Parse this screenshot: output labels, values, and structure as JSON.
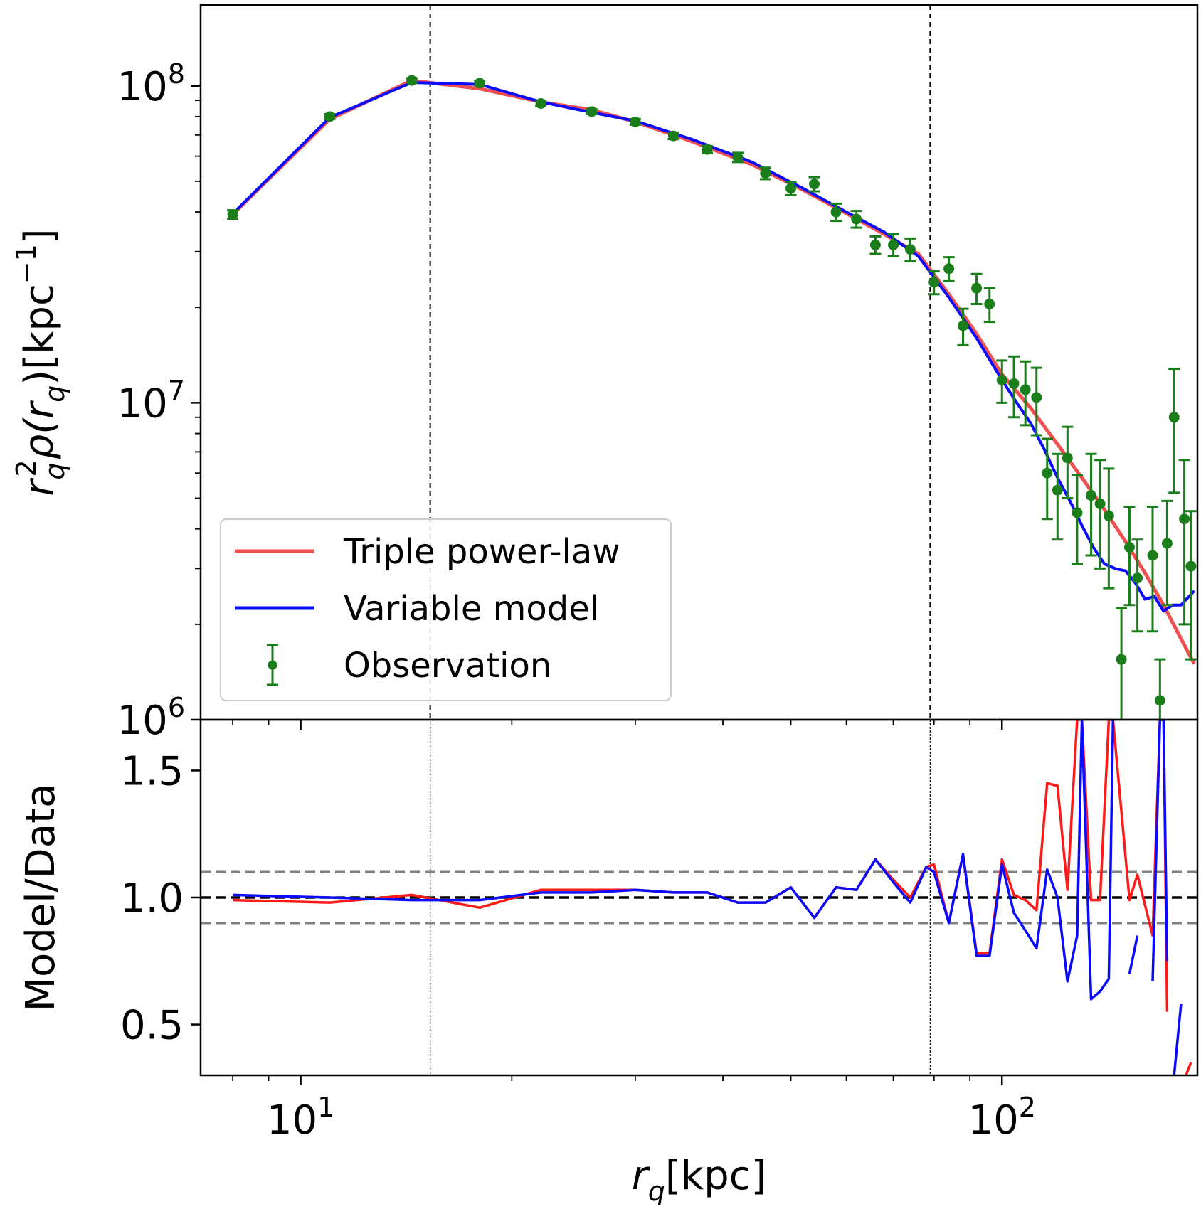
{
  "chart_data": [
    {
      "panel": "upper",
      "type": "line",
      "xscale": "log",
      "yscale": "log",
      "xlim": [
        7.2,
        190
      ],
      "ylim": [
        1000000,
        180000000
      ],
      "ylabel": "r_q^2 ρ(r_q)[kpc^-1]",
      "ytick_labels": [
        {
          "value": 100000000,
          "base": "10",
          "exp": "8"
        },
        {
          "value": 10000000,
          "base": "10",
          "exp": "7"
        },
        {
          "value": 1000000,
          "base": "10",
          "exp": "6"
        }
      ],
      "vlines": [
        15.3,
        79
      ],
      "legend": {
        "position": "lower-left",
        "entries": [
          {
            "label": "Triple power-law",
            "color": "#f05050",
            "kind": "line"
          },
          {
            "label": "Variable model",
            "color": "#0a0aff",
            "kind": "line"
          },
          {
            "label": "Observation",
            "color": "#1a7f1a",
            "kind": "errorbar"
          }
        ]
      },
      "series": [
        {
          "name": "Triple power-law",
          "color": "#f05050",
          "x": [
            8,
            11,
            14.4,
            18,
            22,
            26,
            30,
            36,
            44,
            52,
            60,
            68,
            76,
            84,
            92,
            100,
            110,
            120,
            130,
            140,
            150,
            160,
            170,
            180,
            188
          ],
          "y": [
            39300000,
            78500000,
            104000000,
            98000000,
            89000000,
            84000000,
            77000000,
            67000000,
            56500000,
            47000000,
            39600000,
            34000000,
            29500000,
            22000000,
            16500000,
            12300000,
            9600000,
            7400000,
            5800000,
            4600000,
            3650000,
            2900000,
            2300000,
            1800000,
            1500000
          ]
        },
        {
          "name": "Variable model",
          "color": "#0a0aff",
          "x": [
            8,
            11,
            14.4,
            18,
            22,
            26,
            30,
            36,
            44,
            52,
            60,
            68,
            76,
            84,
            92,
            100,
            105,
            110,
            115,
            120,
            125,
            130,
            135,
            140,
            145,
            150,
            155,
            160,
            165,
            170,
            175,
            180,
            188
          ],
          "y": [
            39500000,
            79500000,
            102500000,
            101000000,
            89000000,
            82500000,
            77500000,
            68000000,
            57500000,
            47500000,
            40000000,
            34500000,
            29000000,
            21500000,
            16000000,
            11800000,
            10000000,
            8600000,
            7100000,
            5800000,
            4900000,
            4100000,
            3500000,
            3100000,
            3000000,
            2950000,
            2700000,
            2400000,
            2450000,
            2200000,
            2300000,
            2300000,
            2550000
          ]
        }
      ],
      "observations": {
        "name": "Observation",
        "color": "#1a7f1a",
        "points": [
          [
            8,
            39300000,
            1200000
          ],
          [
            11,
            80000000,
            1500000
          ],
          [
            14.4,
            104000000,
            1800000
          ],
          [
            18,
            102000000,
            1800000
          ],
          [
            22,
            88000000,
            1600000
          ],
          [
            26,
            83000000,
            1500000
          ],
          [
            30,
            77000000,
            1600000
          ],
          [
            34,
            69500000,
            1600000
          ],
          [
            38,
            63000000,
            1600000
          ],
          [
            42,
            59500000,
            2000000
          ],
          [
            46,
            53000000,
            2200000
          ],
          [
            50,
            47500000,
            2300000
          ],
          [
            54,
            49000000,
            2500000
          ],
          [
            58,
            40000000,
            2500000
          ],
          [
            62,
            38000000,
            2300000
          ],
          [
            66,
            31500000,
            2000000
          ],
          [
            70,
            31500000,
            2500000
          ],
          [
            74,
            30500000,
            2500000
          ],
          [
            80,
            24000000,
            2000000
          ],
          [
            84,
            26500000,
            2300000
          ],
          [
            88,
            17500000,
            2300000
          ],
          [
            92,
            23000000,
            2500000
          ],
          [
            96,
            20500000,
            2500000
          ],
          [
            100,
            11800000,
            1800000
          ],
          [
            104,
            11500000,
            2500000
          ],
          [
            108,
            11000000,
            2500000
          ],
          [
            112,
            10400000,
            2500000
          ],
          [
            116,
            6000000,
            1700000
          ],
          [
            120,
            5300000,
            1600000
          ],
          [
            124,
            6700000,
            1700000
          ],
          [
            128,
            4500000,
            1400000
          ],
          [
            134,
            5100000,
            1800000
          ],
          [
            138,
            4800000,
            1800000
          ],
          [
            142,
            4400000,
            1800000
          ],
          [
            148,
            1550000,
            700000
          ],
          [
            152,
            3500000,
            1200000
          ],
          [
            156,
            2800000,
            900000
          ],
          [
            164,
            3300000,
            1400000
          ],
          [
            168,
            1150000,
            400000
          ],
          [
            172,
            3600000,
            1300000
          ],
          [
            176,
            9000000,
            3800000
          ],
          [
            182,
            4300000,
            2300000
          ],
          [
            186,
            3050000,
            1500000
          ]
        ]
      }
    },
    {
      "panel": "lower",
      "type": "line",
      "xscale": "log",
      "yscale": "linear",
      "xlim": [
        7.2,
        190
      ],
      "ylim": [
        0.3,
        1.7
      ],
      "xlabel": "r_q[kpc]",
      "ylabel": "Model/Data",
      "ytick_labels": [
        {
          "value": 1.5,
          "label": "1.5"
        },
        {
          "value": 1.0,
          "label": "1.0"
        },
        {
          "value": 0.5,
          "label": "0.5"
        }
      ],
      "xtick_labels": [
        {
          "value": 10,
          "base": "10",
          "exp": "1"
        },
        {
          "value": 100,
          "base": "10",
          "exp": "2"
        }
      ],
      "hlines": [
        {
          "value": 1.0,
          "color": "#000000",
          "style": "dashed"
        },
        {
          "value": 1.1,
          "color": "#808080",
          "style": "dashed"
        },
        {
          "value": 0.9,
          "color": "#808080",
          "style": "dashed"
        }
      ],
      "vlines": [
        15.3,
        79
      ],
      "series": [
        {
          "name": "Triple power-law",
          "color": "#ff1a1a",
          "x": [
            8,
            11,
            14.4,
            18,
            22,
            26,
            30,
            34,
            38,
            42,
            46,
            50,
            54,
            58,
            62,
            66,
            70,
            74,
            78,
            80,
            84,
            88,
            92,
            96,
            100,
            104,
            108,
            112,
            116,
            120,
            124,
            128,
            130,
            134,
            138,
            142,
            144,
            152,
            156,
            164,
            168,
            170,
            172,
            176,
            180,
            186
          ],
          "y": [
            0.99,
            0.98,
            1.01,
            0.96,
            1.03,
            1.03,
            1.03,
            1.02,
            1.02,
            0.98,
            0.98,
            1.04,
            0.92,
            1.04,
            1.03,
            1.15,
            1.07,
            1.0,
            1.12,
            1.13,
            0.9,
            1.17,
            0.78,
            0.78,
            1.15,
            1.01,
            0.99,
            0.95,
            1.45,
            1.44,
            1.03,
            1.7,
            1.7,
            0.99,
            0.99,
            1.7,
            1.7,
            0.99,
            1.09,
            0.85,
            1.7,
            1.7,
            0.55,
            0.3,
            0.25,
            0.35
          ],
          "gaps_after": [
            42
          ]
        },
        {
          "name": "Variable model",
          "color": "#0a0aff",
          "x": [
            8,
            11,
            14.4,
            18,
            22,
            26,
            30,
            34,
            38,
            42,
            46,
            50,
            54,
            58,
            62,
            66,
            70,
            74,
            78,
            80,
            84,
            88,
            92,
            96,
            100,
            104,
            108,
            112,
            116,
            120,
            124,
            128,
            130,
            134,
            138,
            142,
            144,
            152,
            156,
            164,
            168,
            170,
            172,
            176,
            180,
            186
          ],
          "y": [
            1.01,
            1.0,
            0.99,
            0.99,
            1.02,
            1.02,
            1.03,
            1.02,
            1.02,
            0.98,
            0.98,
            1.04,
            0.92,
            1.04,
            1.03,
            1.15,
            1.06,
            0.98,
            1.12,
            1.1,
            0.9,
            1.17,
            0.77,
            0.77,
            1.13,
            0.94,
            0.87,
            0.8,
            1.11,
            1.0,
            0.67,
            0.85,
            1.7,
            0.6,
            0.63,
            0.68,
            1.7,
            0.7,
            0.85,
            0.67,
            1.7,
            1.7,
            0.75,
            0.3,
            0.58,
            0.83
          ],
          "gaps_after": [
            36,
            38,
            42,
            44
          ]
        }
      ]
    }
  ]
}
